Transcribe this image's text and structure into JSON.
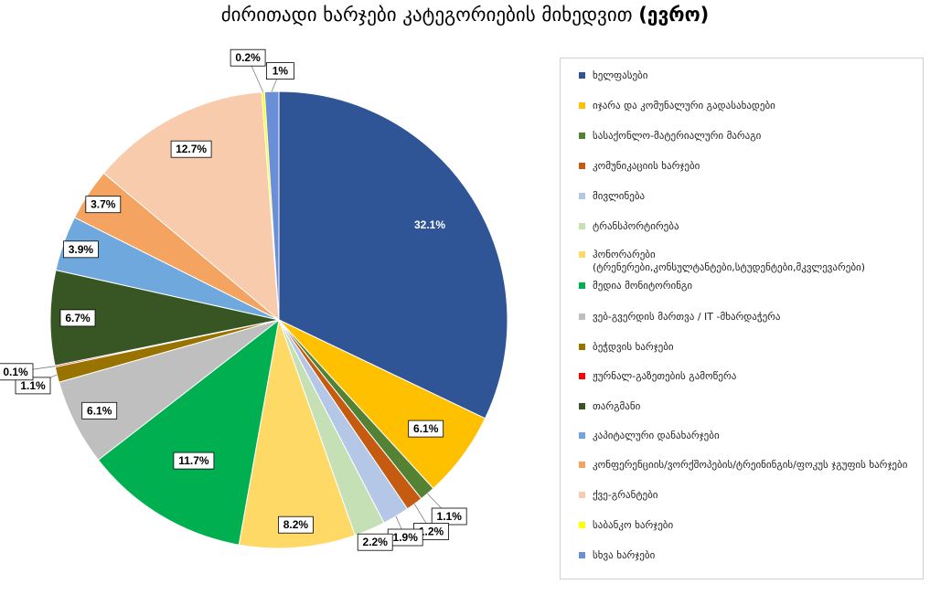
{
  "title": {
    "text": "ძირითადი ხარჯები კატეგორიების მიხედვით",
    "unit": "(ევრო)"
  },
  "chart_data": {
    "type": "pie",
    "title": "ძირითადი ხარჯები კატეგორიების მიხედვით (ევრო)",
    "legend_position": "right",
    "categories": [
      "ხელფასები",
      "იჯარა და კომუნალური გადასახადები",
      "სასაქონლო-მატერიალური მარაგი",
      "კომუნიკაციის ხარჯები",
      "მივლინება",
      "ტრანსპორტირება",
      "ჰონორარები (ტრენერები,კონსულტანტები,სტუდენტები,მკვლევარები)",
      "მედია მონიტორინგი",
      "ვებ-გვერდის მართვა / IT -მხარდაჭერა",
      "ბეჭდვის ხარჯები",
      "ჟურნალ-გაზეთების გამოწერა",
      "თარგმანი",
      "კაპიტალური დანახარჯები",
      "კონფერენციის/ვორქშოპების/ტრეინინგის/ფოკუს ჯგუფის ხარჯები",
      "ქვე-გრანტები",
      "საბანკო ხარჯები",
      "სხვა ხარჯები"
    ],
    "values": [
      32.1,
      6.1,
      1.1,
      1.2,
      1.9,
      2.2,
      8.2,
      11.7,
      6.1,
      1.1,
      0.1,
      6.7,
      3.9,
      3.7,
      12.7,
      0.2,
      1.0
    ],
    "data_labels": [
      "32.1%",
      "6.1%",
      "1.1%",
      "1.2%",
      "1.9%",
      "2.2%",
      "8.2%",
      "11.7%",
      "6.1%",
      "1.1%",
      "0.1%",
      "6.7%",
      "3.9%",
      "3.7%",
      "12.7%",
      "0.2%",
      "1%"
    ],
    "colors": [
      "#2f5597",
      "#ffc000",
      "#548235",
      "#c55a11",
      "#b4c7e7",
      "#c5e0b4",
      "#ffd966",
      "#00b050",
      "#bfbfbf",
      "#997300",
      "#ff0000",
      "#375623",
      "#6fa8dc",
      "#f4a460",
      "#f8cbad",
      "#ffff00",
      "#6a8fd6"
    ]
  }
}
